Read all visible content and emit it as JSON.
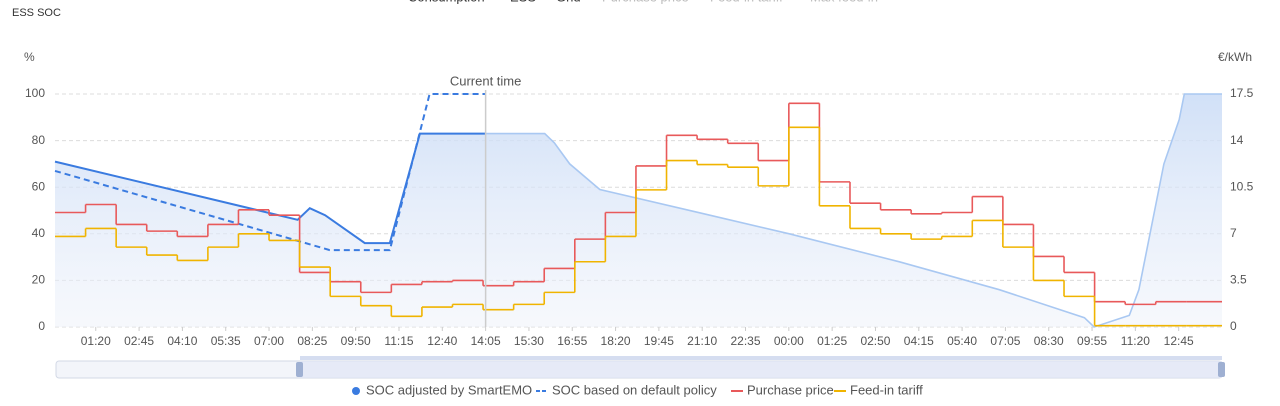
{
  "chart_data": {
    "type": "line",
    "title": "ESS SOC",
    "top_legend": [
      "Consumption",
      "ESS",
      "Grid",
      "Purchase price",
      "Feed-in tariff",
      "Max feed-in"
    ],
    "y_label": "%",
    "y2_label": "€/kWh",
    "annotation": {
      "text": "Current time",
      "x": 845
    },
    "xlim": [
      0,
      2290
    ],
    "xticks": [
      {
        "value": 80,
        "label": "01:20"
      },
      {
        "value": 165,
        "label": "02:45"
      },
      {
        "value": 250,
        "label": "04:10"
      },
      {
        "value": 335,
        "label": "05:35"
      },
      {
        "value": 420,
        "label": "07:00"
      },
      {
        "value": 505,
        "label": "08:25"
      },
      {
        "value": 590,
        "label": "09:50"
      },
      {
        "value": 675,
        "label": "11:15"
      },
      {
        "value": 760,
        "label": "12:40"
      },
      {
        "value": 845,
        "label": "14:05"
      },
      {
        "value": 930,
        "label": "15:30"
      },
      {
        "value": 1015,
        "label": "16:55"
      },
      {
        "value": 1100,
        "label": "18:20"
      },
      {
        "value": 1185,
        "label": "19:45"
      },
      {
        "value": 1270,
        "label": "21:10"
      },
      {
        "value": 1355,
        "label": "22:35"
      },
      {
        "value": 1440,
        "label": "00:00"
      },
      {
        "value": 1525,
        "label": "01:25"
      },
      {
        "value": 1610,
        "label": "02:50"
      },
      {
        "value": 1695,
        "label": "04:15"
      },
      {
        "value": 1780,
        "label": "05:40"
      },
      {
        "value": 1865,
        "label": "07:05"
      },
      {
        "value": 1950,
        "label": "08:30"
      },
      {
        "value": 2035,
        "label": "09:55"
      },
      {
        "value": 2120,
        "label": "11:20"
      },
      {
        "value": 2205,
        "label": "12:45"
      }
    ],
    "ylim": [
      0,
      100
    ],
    "yticks": [
      0,
      20,
      40,
      60,
      80,
      100
    ],
    "y2lim": [
      0,
      17.5
    ],
    "y2ticks": [
      0,
      3.5,
      7,
      10.5,
      14,
      17.5
    ],
    "grid": true,
    "series": [
      {
        "name": "SOC adjusted by SmartEMO",
        "color": "#3a7be0",
        "forecast_color": "#a9c8f2",
        "area": true,
        "x": [
          0,
          476,
          500,
          530,
          608,
          657,
          716,
          845,
          902,
          961,
          980,
          1010,
          1069,
          1265,
          1441,
          1657,
          1853,
          2020,
          2039,
          2108,
          2127,
          2176,
          2206,
          2216,
          2290
        ],
        "values": [
          71,
          46,
          51,
          48,
          36,
          36,
          83,
          83,
          83,
          83,
          79,
          70,
          59,
          49,
          40,
          28,
          16,
          4,
          0,
          5,
          16,
          70,
          89,
          100,
          100
        ]
      },
      {
        "name": "SOC based on default policy",
        "color": "#3a7be0",
        "dashed": true,
        "x": [
          0,
          476,
          539,
          657,
          735,
          845
        ],
        "values": [
          67,
          37,
          33,
          33,
          100,
          100
        ]
      },
      {
        "name": "Purchase price",
        "color": "#e8595a",
        "axis": "y2",
        "step": true,
        "x": [
          0,
          60,
          120,
          180,
          240,
          300,
          360,
          420,
          480,
          540,
          600,
          660,
          720,
          780,
          840,
          900,
          960,
          1020,
          1080,
          1140,
          1200,
          1260,
          1320,
          1380,
          1440,
          1500,
          1560,
          1620,
          1680,
          1740,
          1800,
          1860,
          1920,
          1980,
          2040,
          2100,
          2160,
          2220
        ],
        "values": [
          8.6,
          9.2,
          7.7,
          7.2,
          6.8,
          7.7,
          8.8,
          8.4,
          4.1,
          3.4,
          2.6,
          3.2,
          3.4,
          3.5,
          3.1,
          3.4,
          4.4,
          6.6,
          8.6,
          12.1,
          14.4,
          14.1,
          13.8,
          12.5,
          16.8,
          10.9,
          9.3,
          8.8,
          8.5,
          8.6,
          9.8,
          7.7,
          5.3,
          4.1,
          1.9,
          1.7,
          1.9,
          1.9
        ]
      },
      {
        "name": "Feed-in tariff",
        "color": "#f0b400",
        "axis": "y2",
        "step": true,
        "x": [
          0,
          60,
          120,
          180,
          240,
          300,
          360,
          420,
          480,
          540,
          600,
          660,
          720,
          780,
          840,
          900,
          960,
          1020,
          1080,
          1140,
          1200,
          1260,
          1320,
          1380,
          1440,
          1500,
          1560,
          1620,
          1680,
          1740,
          1800,
          1860,
          1920,
          1980,
          2040,
          2100,
          2160,
          2220
        ],
        "values": [
          6.8,
          7.4,
          6.0,
          5.4,
          5.0,
          6.0,
          7.0,
          6.5,
          4.5,
          2.3,
          1.6,
          0.8,
          1.5,
          1.7,
          1.3,
          1.7,
          2.6,
          4.9,
          6.8,
          10.3,
          12.5,
          12.2,
          12.0,
          10.6,
          15.0,
          9.1,
          7.4,
          7.0,
          6.6,
          6.8,
          8.0,
          6.0,
          3.5,
          2.3,
          0.1,
          0.1,
          0.1,
          0.1
        ]
      }
    ]
  }
}
